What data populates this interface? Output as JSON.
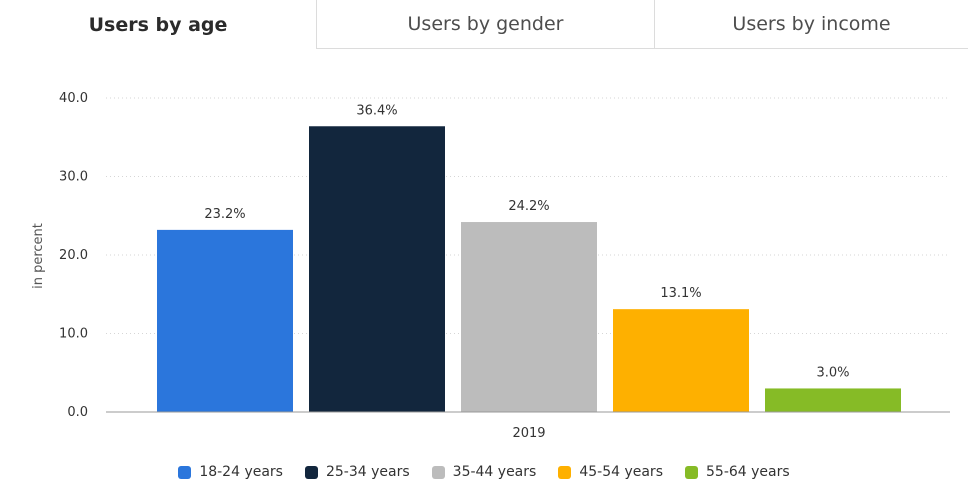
{
  "tabs": [
    {
      "label": "Users by age",
      "active": true
    },
    {
      "label": "Users by gender",
      "active": false
    },
    {
      "label": "Users by income",
      "active": false
    }
  ],
  "chart_data": {
    "type": "bar",
    "title": "",
    "xlabel": "",
    "ylabel": "in percent",
    "categories": [
      "2019"
    ],
    "series": [
      {
        "name": "18-24 years",
        "values": [
          23.2
        ],
        "label": "23.2%",
        "color": "#2b76dc"
      },
      {
        "name": "25-34 years",
        "values": [
          36.4
        ],
        "label": "36.4%",
        "color": "#12263d"
      },
      {
        "name": "35-44 years",
        "values": [
          24.2
        ],
        "label": "24.2%",
        "color": "#bcbcbc"
      },
      {
        "name": "45-54 years",
        "values": [
          13.1
        ],
        "label": "13.1%",
        "color": "#feb000"
      },
      {
        "name": "55-64 years",
        "values": [
          3.0
        ],
        "label": "3.0%",
        "color": "#86bb26"
      }
    ],
    "yticks": [
      "0.0",
      "10.0",
      "20.0",
      "30.0",
      "40.0"
    ],
    "ylim": [
      0,
      40
    ],
    "grid": true,
    "legend": "bottom"
  }
}
